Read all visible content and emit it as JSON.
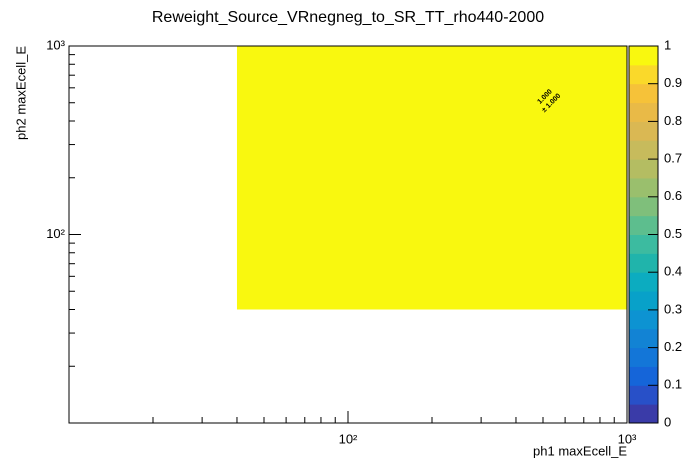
{
  "chart_data": {
    "type": "heatmap",
    "title": "Reweight_Source_VRnegneg_to_SR_TT_rho440-2000",
    "x_label": "ph1 maxEcell_E",
    "y_label": "ph2 maxEcell_E",
    "log_x": true,
    "log_y": true,
    "xlim": [
      10,
      1000
    ],
    "ylim": [
      10,
      1000
    ],
    "xticks": [
      {
        "value": 100,
        "label": "10²"
      },
      {
        "value": 1000,
        "label": "10³"
      }
    ],
    "yticks": [
      {
        "value": 100,
        "label": "10²"
      },
      {
        "value": 1000,
        "label": "10³"
      }
    ],
    "zlim": [
      0,
      1
    ],
    "zticks": [
      0,
      0.1,
      0.2,
      0.3,
      0.4,
      0.5,
      0.6,
      0.7,
      0.8,
      0.9,
      1
    ],
    "palette": [
      "#3a3ba8",
      "#2850c8",
      "#1565d9",
      "#1376d8",
      "#1283d4",
      "#0d93d2",
      "#08a1c9",
      "#0cacc0",
      "#20b4ab",
      "#3cbba0",
      "#5dbe8e",
      "#7fbf7b",
      "#9abf6d",
      "#b4bd62",
      "#c7bb5c",
      "#dab853",
      "#e9ba47",
      "#f6c239",
      "#fad92a",
      "#f9f80f"
    ],
    "bins": [
      {
        "x_edges": [
          40,
          1000
        ],
        "y_edges": [
          40,
          1000
        ],
        "value": 1,
        "value_label": "1.000",
        "error": 1,
        "error_label": "± 1.000"
      }
    ]
  }
}
